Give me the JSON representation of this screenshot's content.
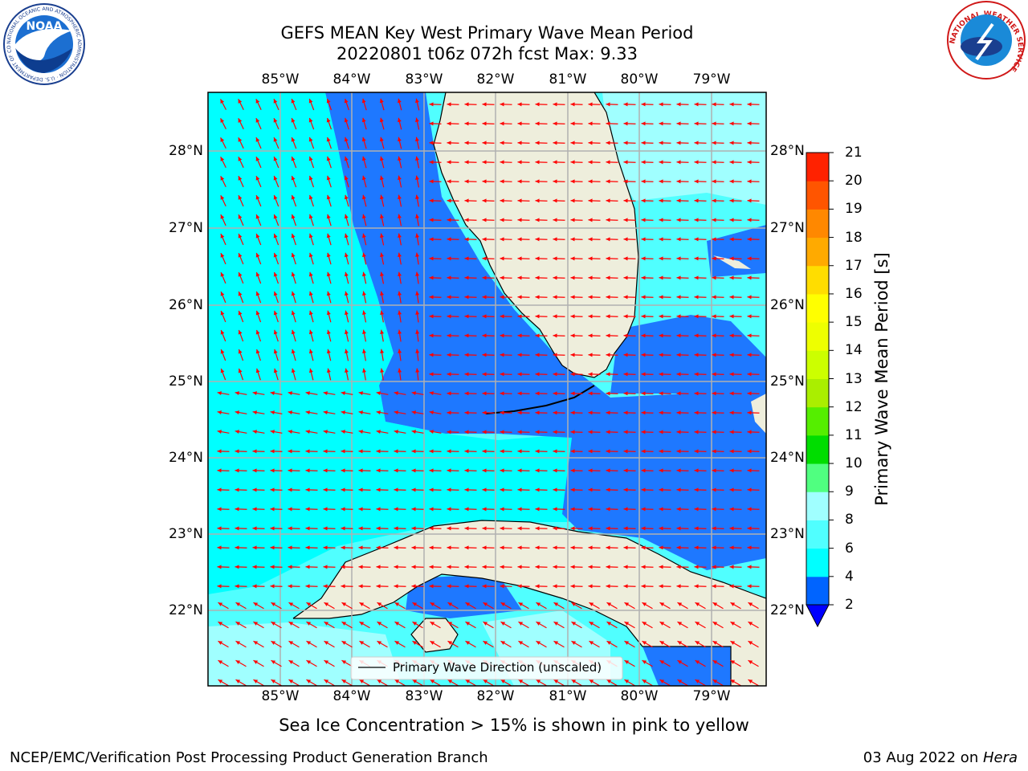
{
  "title": {
    "line1": "GEFS MEAN Key West Primary Wave Mean Period",
    "line2": "20220801 t06z 072h fcst   Max: 9.33"
  },
  "axes": {
    "lon_labels": [
      "85°W",
      "84°W",
      "83°W",
      "82°W",
      "81°W",
      "80°W",
      "79°W"
    ],
    "lat_labels": [
      "28°N",
      "27°N",
      "26°N",
      "25°N",
      "24°N",
      "23°N",
      "22°N"
    ]
  },
  "legend": {
    "label": "Primary Wave Direction (unscaled)"
  },
  "colorbar": {
    "label": "Primary Wave Mean Period [s]",
    "ticks": [
      "2",
      "4",
      "6",
      "8",
      "9",
      "10",
      "11",
      "12",
      "13",
      "14",
      "15",
      "16",
      "17",
      "18",
      "19",
      "20",
      "21"
    ],
    "colors": [
      "#0064ff",
      "#00ffff",
      "#50ffff",
      "#a0ffff",
      "#50ff80",
      "#00dd00",
      "#55ee00",
      "#aaee00",
      "#ccff00",
      "#eeff00",
      "#ffff00",
      "#ffdd00",
      "#ffaa00",
      "#ff8800",
      "#ff5500",
      "#ff2200"
    ],
    "extend_color": "#0000ff"
  },
  "caption": "Sea Ice Concentration > 15% is shown in pink to yellow",
  "footer": {
    "left": "NCEP/EMC/Verification Post Processing Product Generation Branch",
    "date": "03 Aug 2022 on ",
    "machine": "Hera"
  },
  "logos": {
    "noaa_text": "NOAA",
    "noaa_ring": "NATIONAL OCEANIC AND ATMOSPHERIC ADMINISTRATION · U.S. DEPARTMENT OF COMMERCE",
    "nws_ring": "NATIONAL WEATHER SERVICE"
  },
  "colors": {
    "land": "#eeeedc",
    "grid": "#b0b0b0",
    "arrow": "#ff0000",
    "period_2_4": "#1e78ff",
    "period_4_6": "#00ffff",
    "period_6_8": "#50ffff",
    "period_8_9": "#a0ffff"
  }
}
